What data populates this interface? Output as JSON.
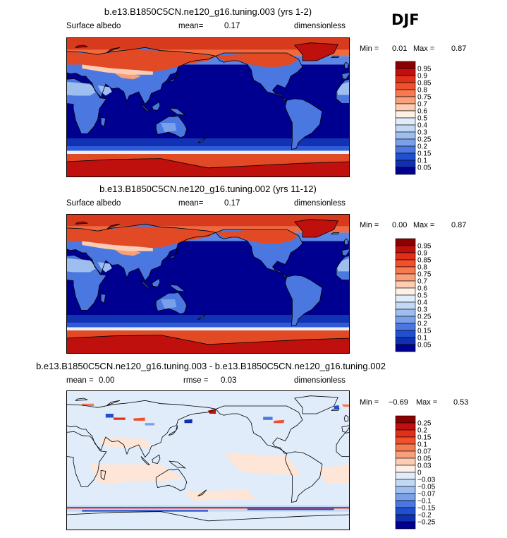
{
  "season": "DJF",
  "chart_data": [
    {
      "type": "heatmap",
      "title": "b.e13.B1850C5CN.ne120_g16.tuning.003 (yrs 1-2)",
      "variable": "Surface albedo",
      "mean_label": "mean=",
      "mean_value": "0.17",
      "units": "dimensionless",
      "min_label": "Min =",
      "min_value": "0.01",
      "max_label": "Max =",
      "max_value": "0.87",
      "colorbar_levels": [
        "0.95",
        "0.9",
        "0.85",
        "0.8",
        "0.75",
        "0.7",
        "0.6",
        "0.5",
        "0.4",
        "0.3",
        "0.25",
        "0.2",
        "0.15",
        "0.1",
        "0.05"
      ],
      "colorbar_colors": [
        "#8b0000",
        "#c0100e",
        "#e03018",
        "#f0502c",
        "#f57a52",
        "#f8a07c",
        "#fccdb4",
        "#fdf0e6",
        "#e0ecfa",
        "#c2d8f4",
        "#9ebef0",
        "#7aa0ea",
        "#4a78e0",
        "#2050d0",
        "#1030b0",
        "#000090"
      ],
      "scale": "sequential"
    },
    {
      "type": "heatmap",
      "title": "b.e13.B1850C5CN.ne120_g16.tuning.002 (yrs 11-12)",
      "variable": "Surface albedo",
      "mean_label": "mean=",
      "mean_value": "0.17",
      "units": "dimensionless",
      "min_label": "Min =",
      "min_value": "0.00",
      "max_label": "Max =",
      "max_value": "0.87",
      "colorbar_levels": [
        "0.95",
        "0.9",
        "0.85",
        "0.8",
        "0.75",
        "0.7",
        "0.6",
        "0.5",
        "0.4",
        "0.3",
        "0.25",
        "0.2",
        "0.15",
        "0.1",
        "0.05"
      ],
      "colorbar_colors": [
        "#8b0000",
        "#c0100e",
        "#e03018",
        "#f0502c",
        "#f57a52",
        "#f8a07c",
        "#fccdb4",
        "#fdf0e6",
        "#e0ecfa",
        "#c2d8f4",
        "#9ebef0",
        "#7aa0ea",
        "#4a78e0",
        "#2050d0",
        "#1030b0",
        "#000090"
      ],
      "scale": "sequential"
    },
    {
      "type": "heatmap",
      "title": "b.e13.B1850C5CN.ne120_g16.tuning.003 - b.e13.B1850C5CN.ne120_g16.tuning.002",
      "mean_label": "mean =",
      "mean_value": "0.00",
      "rmse_label": "rmse =",
      "rmse_value": "0.03",
      "units": "dimensionless",
      "min_label": "Min =",
      "min_value": "−0.69",
      "max_label": "Max =",
      "max_value": "0.53",
      "colorbar_levels": [
        "0.25",
        "0.2",
        "0.15",
        "0.1",
        "0.07",
        "0.05",
        "0.03",
        "0",
        "−0.03",
        "−0.05",
        "−0.07",
        "−0.1",
        "−0.15",
        "−0.2",
        "−0.25"
      ],
      "colorbar_colors": [
        "#8b0000",
        "#c0100e",
        "#e03018",
        "#f0502c",
        "#f57a52",
        "#f8a07c",
        "#fccdb4",
        "#fdf0e6",
        "#e0ecfa",
        "#c2d8f4",
        "#9ebef0",
        "#7aa0ea",
        "#4a78e0",
        "#2050d0",
        "#1030b0",
        "#000090"
      ],
      "scale": "diverging"
    }
  ]
}
